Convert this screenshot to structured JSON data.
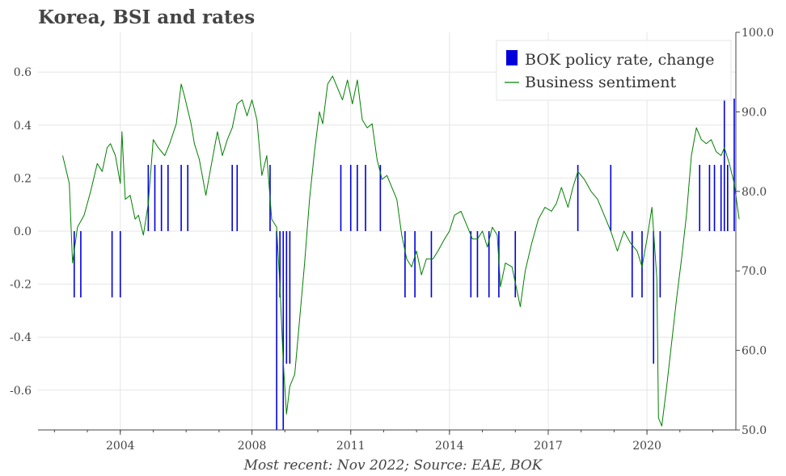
{
  "title": "Korea, BSI and rates",
  "footer": "Most recent: Nov 2022; Source: EAE, BOK",
  "colors": {
    "bars": "#0000dd",
    "line": "#008000",
    "grid": "#e6e6e6",
    "axis": "#444444"
  },
  "chart_data": {
    "type": "bar+line",
    "title": "Korea, BSI and rates",
    "x_range": [
      2001.5,
      2022.7
    ],
    "x_ticks": [
      {
        "value": 2004,
        "label": "2004"
      },
      {
        "value": 2008,
        "label": "2008"
      },
      {
        "value": 2011,
        "label": "2011"
      },
      {
        "value": 2014,
        "label": "2014"
      },
      {
        "value": 2017,
        "label": "2017"
      },
      {
        "value": 2020,
        "label": "2020"
      }
    ],
    "y_left": {
      "range": [
        -0.75,
        0.75
      ],
      "ticks": [
        "0.6",
        "0.4",
        "0.2",
        "0.0",
        "-0.2",
        "-0.4",
        "-0.6"
      ],
      "tick_values": [
        0.6,
        0.4,
        0.2,
        0.0,
        -0.2,
        -0.4,
        -0.6
      ]
    },
    "y_right": {
      "range": [
        50,
        100
      ],
      "ticks": [
        "100.0",
        "90.0",
        "80.0",
        "70.0",
        "60.0",
        "50.0"
      ],
      "tick_values": [
        100,
        90,
        80,
        70,
        60,
        50
      ]
    },
    "legend": {
      "position": "top-right",
      "entries": [
        "BOK policy rate, change",
        "Business sentiment"
      ]
    },
    "series": [
      {
        "name": "BOK policy rate, change",
        "type": "bar",
        "axis": "left",
        "points": [
          [
            2002.6,
            -0.25
          ],
          [
            2002.8,
            -0.25
          ],
          [
            2003.75,
            -0.25
          ],
          [
            2004.0,
            -0.25
          ],
          [
            2004.85,
            0.25
          ],
          [
            2005.05,
            0.25
          ],
          [
            2005.25,
            0.25
          ],
          [
            2005.45,
            0.25
          ],
          [
            2005.85,
            0.25
          ],
          [
            2006.05,
            0.25
          ],
          [
            2007.4,
            0.25
          ],
          [
            2007.55,
            0.25
          ],
          [
            2008.55,
            0.25
          ],
          [
            2008.75,
            -0.75
          ],
          [
            2008.85,
            -0.25
          ],
          [
            2008.95,
            -0.75
          ],
          [
            2009.05,
            -0.5
          ],
          [
            2009.15,
            -0.5
          ],
          [
            2010.7,
            0.25
          ],
          [
            2011.0,
            0.25
          ],
          [
            2011.2,
            0.25
          ],
          [
            2011.45,
            0.25
          ],
          [
            2011.9,
            0.25
          ],
          [
            2012.65,
            -0.25
          ],
          [
            2012.95,
            -0.25
          ],
          [
            2013.45,
            -0.25
          ],
          [
            2014.65,
            -0.25
          ],
          [
            2014.85,
            -0.25
          ],
          [
            2015.2,
            -0.25
          ],
          [
            2015.5,
            -0.25
          ],
          [
            2016.0,
            -0.25
          ],
          [
            2017.9,
            0.25
          ],
          [
            2018.9,
            0.25
          ],
          [
            2019.55,
            -0.25
          ],
          [
            2019.85,
            -0.25
          ],
          [
            2020.2,
            -0.5
          ],
          [
            2020.4,
            -0.25
          ],
          [
            2021.6,
            0.25
          ],
          [
            2021.9,
            0.25
          ],
          [
            2022.05,
            0.25
          ],
          [
            2022.25,
            0.25
          ],
          [
            2022.35,
            0.5
          ],
          [
            2022.45,
            0.25
          ],
          [
            2022.65,
            0.5
          ]
        ]
      },
      {
        "name": "Business sentiment",
        "type": "line",
        "axis": "right",
        "points": [
          [
            2002.25,
            84.5
          ],
          [
            2002.45,
            81.0
          ],
          [
            2002.55,
            71.0
          ],
          [
            2002.7,
            75.5
          ],
          [
            2002.9,
            77.0
          ],
          [
            2003.1,
            80.0
          ],
          [
            2003.3,
            83.5
          ],
          [
            2003.45,
            82.5
          ],
          [
            2003.6,
            85.5
          ],
          [
            2003.7,
            86.0
          ],
          [
            2003.85,
            84.5
          ],
          [
            2004.0,
            81.0
          ],
          [
            2004.05,
            87.5
          ],
          [
            2004.15,
            79.0
          ],
          [
            2004.3,
            79.5
          ],
          [
            2004.45,
            76.5
          ],
          [
            2004.55,
            77.0
          ],
          [
            2004.7,
            74.5
          ],
          [
            2004.85,
            78.5
          ],
          [
            2005.0,
            86.5
          ],
          [
            2005.15,
            85.5
          ],
          [
            2005.35,
            84.5
          ],
          [
            2005.5,
            86.0
          ],
          [
            2005.7,
            88.5
          ],
          [
            2005.85,
            93.5
          ],
          [
            2005.95,
            92.0
          ],
          [
            2006.15,
            88.5
          ],
          [
            2006.25,
            86.0
          ],
          [
            2006.4,
            84.0
          ],
          [
            2006.6,
            79.5
          ],
          [
            2006.75,
            83.0
          ],
          [
            2006.95,
            87.5
          ],
          [
            2007.1,
            84.5
          ],
          [
            2007.25,
            86.5
          ],
          [
            2007.4,
            88.0
          ],
          [
            2007.55,
            91.0
          ],
          [
            2007.7,
            91.5
          ],
          [
            2007.85,
            89.5
          ],
          [
            2008.0,
            91.5
          ],
          [
            2008.15,
            89.0
          ],
          [
            2008.3,
            82.0
          ],
          [
            2008.45,
            84.5
          ],
          [
            2008.6,
            76.5
          ],
          [
            2008.75,
            75.5
          ],
          [
            2008.85,
            68.0
          ],
          [
            2008.95,
            58.5
          ],
          [
            2009.05,
            52.0
          ],
          [
            2009.15,
            55.5
          ],
          [
            2009.3,
            57.0
          ],
          [
            2009.45,
            64.0
          ],
          [
            2009.6,
            71.0
          ],
          [
            2009.75,
            79.0
          ],
          [
            2009.9,
            85.0
          ],
          [
            2010.05,
            90.0
          ],
          [
            2010.15,
            88.5
          ],
          [
            2010.3,
            93.5
          ],
          [
            2010.45,
            94.5
          ],
          [
            2010.6,
            93.0
          ],
          [
            2010.75,
            91.5
          ],
          [
            2010.9,
            94.0
          ],
          [
            2011.05,
            91.0
          ],
          [
            2011.2,
            94.0
          ],
          [
            2011.35,
            89.0
          ],
          [
            2011.5,
            88.0
          ],
          [
            2011.65,
            88.5
          ],
          [
            2011.8,
            84.0
          ],
          [
            2011.95,
            81.5
          ],
          [
            2012.1,
            82.0
          ],
          [
            2012.25,
            80.5
          ],
          [
            2012.4,
            79.0
          ],
          [
            2012.55,
            74.5
          ],
          [
            2012.7,
            71.5
          ],
          [
            2012.85,
            70.5
          ],
          [
            2013.0,
            72.5
          ],
          [
            2013.15,
            69.5
          ],
          [
            2013.3,
            71.5
          ],
          [
            2013.5,
            71.5
          ],
          [
            2013.65,
            72.5
          ],
          [
            2013.85,
            74.0
          ],
          [
            2014.0,
            75.0
          ],
          [
            2014.15,
            77.0
          ],
          [
            2014.35,
            77.5
          ],
          [
            2014.5,
            76.0
          ],
          [
            2014.7,
            74.0
          ],
          [
            2014.85,
            74.0
          ],
          [
            2015.0,
            75.0
          ],
          [
            2015.15,
            73.0
          ],
          [
            2015.3,
            75.5
          ],
          [
            2015.45,
            74.5
          ],
          [
            2015.55,
            68.0
          ],
          [
            2015.7,
            71.0
          ],
          [
            2015.9,
            70.5
          ],
          [
            2016.0,
            68.5
          ],
          [
            2016.15,
            65.5
          ],
          [
            2016.3,
            70.0
          ],
          [
            2016.5,
            73.5
          ],
          [
            2016.7,
            76.5
          ],
          [
            2016.9,
            78.0
          ],
          [
            2017.1,
            77.5
          ],
          [
            2017.25,
            78.5
          ],
          [
            2017.4,
            80.5
          ],
          [
            2017.6,
            78.0
          ],
          [
            2017.75,
            80.5
          ],
          [
            2017.9,
            82.5
          ],
          [
            2018.1,
            81.5
          ],
          [
            2018.3,
            80.0
          ],
          [
            2018.5,
            79.0
          ],
          [
            2018.7,
            77.0
          ],
          [
            2018.9,
            75.0
          ],
          [
            2019.1,
            72.5
          ],
          [
            2019.3,
            75.0
          ],
          [
            2019.5,
            73.5
          ],
          [
            2019.7,
            72.5
          ],
          [
            2019.85,
            70.5
          ],
          [
            2020.0,
            74.0
          ],
          [
            2020.15,
            78.0
          ],
          [
            2020.3,
            69.0
          ],
          [
            2020.35,
            51.5
          ],
          [
            2020.45,
            50.5
          ],
          [
            2020.6,
            55.5
          ],
          [
            2020.75,
            61.0
          ],
          [
            2020.9,
            66.5
          ],
          [
            2021.05,
            71.5
          ],
          [
            2021.2,
            77.0
          ],
          [
            2021.35,
            84.5
          ],
          [
            2021.5,
            88.0
          ],
          [
            2021.65,
            86.5
          ],
          [
            2021.8,
            86.0
          ],
          [
            2021.95,
            86.5
          ],
          [
            2022.1,
            85.0
          ],
          [
            2022.25,
            84.5
          ],
          [
            2022.35,
            85.5
          ],
          [
            2022.5,
            83.5
          ],
          [
            2022.65,
            81.0
          ],
          [
            2022.75,
            78.0
          ],
          [
            2022.8,
            76.5
          ]
        ]
      }
    ]
  }
}
